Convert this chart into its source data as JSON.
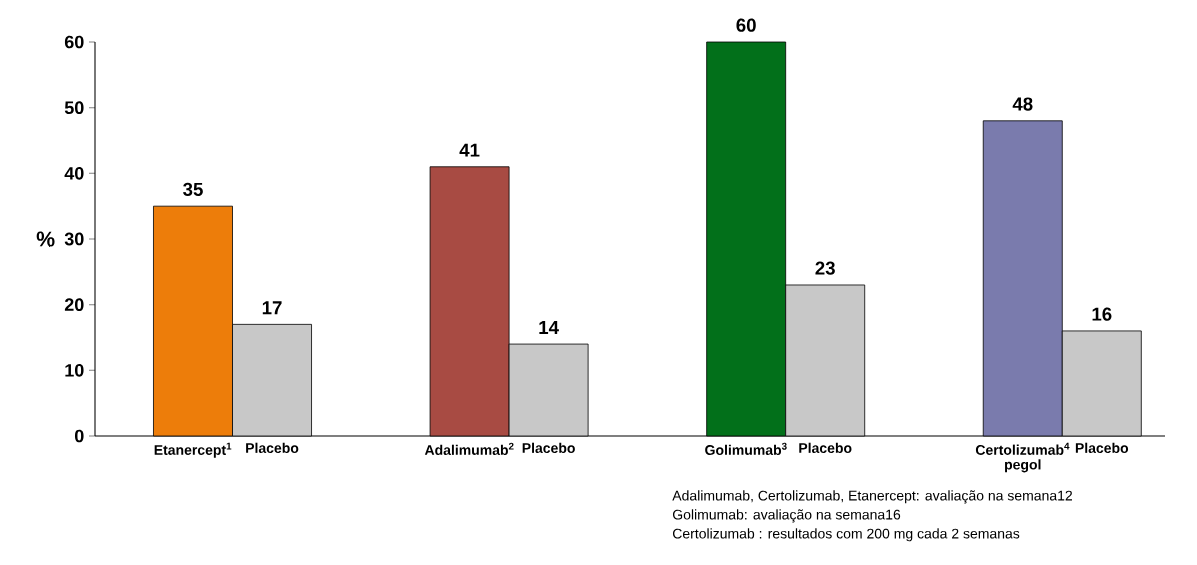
{
  "chart_data": {
    "type": "bar",
    "ylabel": "%",
    "categories": [
      "Etanercept$^{1}$",
      "Placebo",
      "Adalimumab$^{2}$",
      "Placebo",
      "Golimumab$^{3}$",
      "Placebo",
      "Certolizumab$^{4}$ pegol",
      "Placebo"
    ],
    "values": [
      35,
      17,
      41,
      14,
      60,
      23,
      48,
      16
    ],
    "colors": [
      "#ed7d0a",
      "#c8c8c8",
      "#a84b43",
      "#c8c8c8",
      "#02701a",
      "#c8c8c8",
      "#7a7bad",
      "#c8c8c8"
    ],
    "ylim": [
      0,
      60
    ],
    "yticks": [
      0,
      10,
      20,
      30,
      40,
      50,
      60
    ],
    "data_labels": true,
    "annotations": [
      "Adalimumab, Certolizumab, Etanercept: avaliação na semana12",
      "Golimumab: avaliação na semana16",
      "Certolizumab : resultados com 200 mg cada 2 semanas"
    ]
  }
}
